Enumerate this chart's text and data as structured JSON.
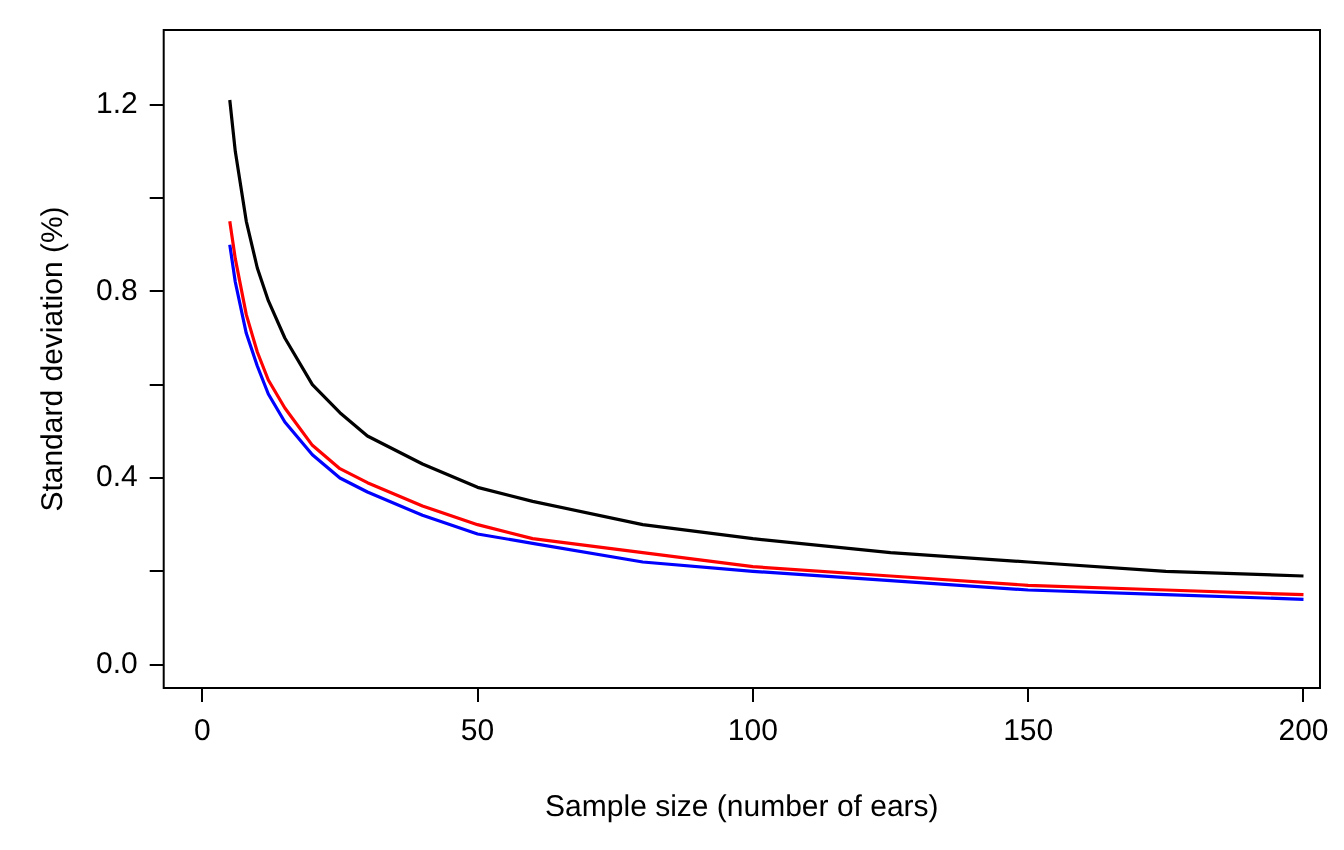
{
  "chart_data": {
    "type": "line",
    "xlabel": "Sample size (number of ears)",
    "ylabel": "Standard deviation (%)",
    "x": [
      5,
      6,
      8,
      10,
      12,
      15,
      20,
      25,
      30,
      40,
      50,
      60,
      80,
      100,
      125,
      150,
      175,
      200
    ],
    "series": [
      {
        "color": "#000000",
        "values": [
          1.21,
          1.1,
          0.95,
          0.85,
          0.78,
          0.7,
          0.6,
          0.54,
          0.49,
          0.43,
          0.38,
          0.35,
          0.3,
          0.27,
          0.24,
          0.22,
          0.2,
          0.19
        ]
      },
      {
        "color": "#ff0000",
        "values": [
          0.95,
          0.87,
          0.75,
          0.67,
          0.61,
          0.55,
          0.47,
          0.42,
          0.39,
          0.34,
          0.3,
          0.27,
          0.24,
          0.21,
          0.19,
          0.17,
          0.16,
          0.15
        ]
      },
      {
        "color": "#0000ff",
        "values": [
          0.9,
          0.82,
          0.71,
          0.64,
          0.58,
          0.52,
          0.45,
          0.4,
          0.37,
          0.32,
          0.28,
          0.26,
          0.22,
          0.2,
          0.18,
          0.16,
          0.15,
          0.14
        ]
      }
    ],
    "xlim": [
      -7,
      203
    ],
    "xticks": [
      0,
      50,
      100,
      150,
      200
    ],
    "ylim": [
      -0.05,
      1.36
    ],
    "yticks": [
      {
        "value": 0,
        "label": "0.0"
      },
      {
        "value": 0.2,
        "label": null
      },
      {
        "value": 0.4,
        "label": "0.4"
      },
      {
        "value": 0.6,
        "label": null
      },
      {
        "value": 0.8,
        "label": "0.8"
      },
      {
        "value": 1.0,
        "label": null
      },
      {
        "value": 1.2,
        "label": "1.2"
      }
    ],
    "grid": false,
    "legend": false,
    "marker": "none",
    "line_style": "solid"
  }
}
